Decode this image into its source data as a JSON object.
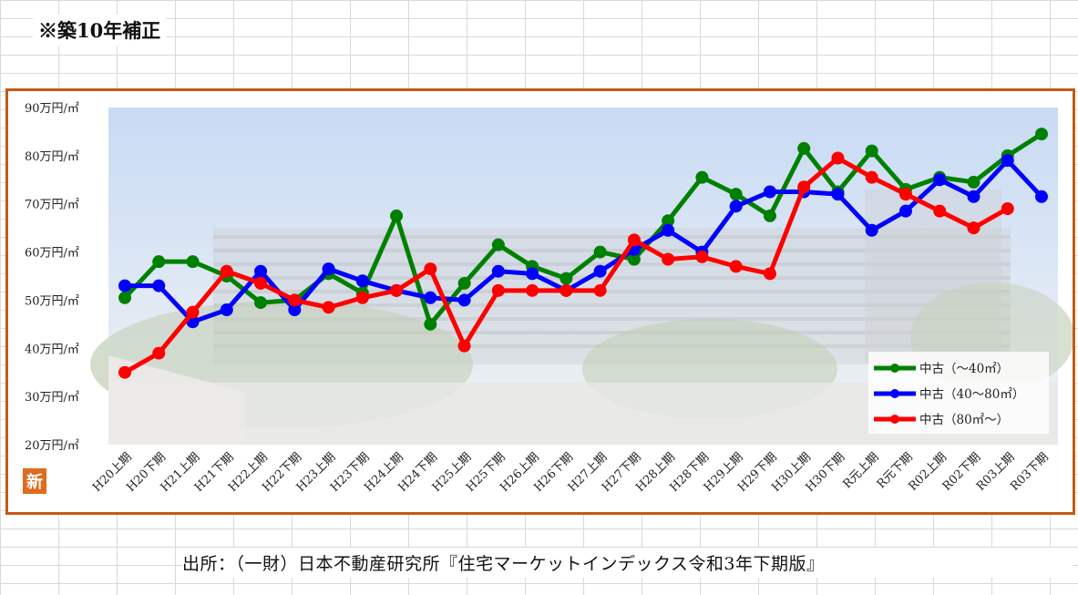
{
  "note": "※築10年補正",
  "source": "出所：（一財）日本不動産研究所『住宅マーケットインデックス令和3年下期版』",
  "badge": "新",
  "chart_data": {
    "type": "line",
    "title": "",
    "xlabel": "",
    "ylabel": "",
    "ylim": [
      20,
      90
    ],
    "yticks": [
      {
        "value": 90,
        "label": "90万円/㎡"
      },
      {
        "value": 80,
        "label": "80万円/㎡"
      },
      {
        "value": 70,
        "label": "70万円/㎡"
      },
      {
        "value": 60,
        "label": "60万円/㎡"
      },
      {
        "value": 50,
        "label": "50万円/㎡"
      },
      {
        "value": 40,
        "label": "40万円/㎡"
      },
      {
        "value": 30,
        "label": "30万円/㎡"
      },
      {
        "value": 20,
        "label": "20万円/㎡"
      }
    ],
    "categories": [
      "H20上期",
      "H20下期",
      "H21上期",
      "H21下期",
      "H22上期",
      "H22下期",
      "H23上期",
      "H23下期",
      "H24上期",
      "H24下期",
      "H25上期",
      "H25下期",
      "H26上期",
      "H26下期",
      "H27上期",
      "H27下期",
      "H28上期",
      "H28下期",
      "H29上期",
      "H29下期",
      "H30上期",
      "H30下期",
      "R元上期",
      "R元下期",
      "R02上期",
      "R02下期",
      "R03上期",
      "R03下期"
    ],
    "legend_position": "bottom-right",
    "grid": false,
    "series": [
      {
        "name": "中古（～40㎡）",
        "color": "#008000",
        "values": [
          50.5,
          58,
          58,
          55,
          49.5,
          50,
          55.5,
          51.5,
          67.5,
          45,
          53.5,
          61.5,
          57,
          54.5,
          60,
          58.5,
          66.5,
          75.5,
          72,
          67.5,
          81.5,
          72.5,
          81,
          73,
          75.5,
          74.5,
          80,
          84.5
        ]
      },
      {
        "name": "中古（40～80㎡）",
        "color": "#0000ff",
        "values": [
          53,
          53,
          45.5,
          48,
          56,
          48,
          56.5,
          54,
          52,
          50.5,
          50,
          56,
          55.5,
          52,
          56,
          60.5,
          64.5,
          60,
          69.5,
          72.5,
          72.5,
          72,
          64.5,
          68.5,
          75,
          71.5,
          79,
          71.5
        ]
      },
      {
        "name": "中古（80㎡～）",
        "color": "#ff0000",
        "values": [
          35,
          39,
          47.5,
          56,
          53.5,
          50,
          48.5,
          50.5,
          52,
          56.5,
          40.5,
          52,
          52,
          52,
          52,
          62.5,
          58.5,
          59,
          57,
          55.5,
          73.5,
          79.5,
          75.5,
          72,
          68.5,
          65,
          69,
          null
        ]
      }
    ]
  }
}
